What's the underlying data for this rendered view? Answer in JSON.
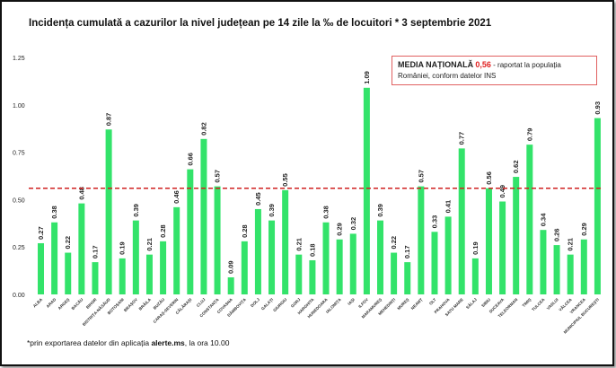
{
  "title": "Incidența cumulată a cazurilor la nivel județean pe 14 zile la ‰ de locuitori * 3 septembrie 2021",
  "legend": {
    "label": "MEDIA NAȚIONALĂ",
    "value": "0,56",
    "text": "- raportat la populația României, conform datelor INS"
  },
  "note": {
    "prefix": "*prin exportarea  datelor din aplicația ",
    "bold": "alerte.ms",
    "suffix": ", la ora 10.00"
  },
  "chart_data": {
    "type": "bar",
    "title": "Incidența cumulată a cazurilor la nivel județean pe 14 zile la ‰ de locuitori * 3 septembrie 2021",
    "categories": [
      "ALBA",
      "ARAD",
      "ARGEȘ",
      "BACĂU",
      "BIHOR",
      "BISTRIȚA-NĂSĂUD",
      "BOTOȘANI",
      "BRAȘOV",
      "BRĂILA",
      "BUZĂU",
      "CARAȘ-SEVERIN",
      "CĂLĂRAȘI",
      "CLUJ",
      "CONSTANȚA",
      "COVASNA",
      "DÂMBOVIȚA",
      "DOLJ",
      "GALAȚI",
      "GIURGIU",
      "GORJ",
      "HARGHITA",
      "HUNEDOARA",
      "IALOMIȚA",
      "IAȘI",
      "ILFOV",
      "MARAMUREȘ",
      "MEHEDINȚI",
      "MUREȘ",
      "NEAMȚ",
      "OLT",
      "PRAHOVA",
      "SATU MARE",
      "SĂLAJ",
      "SIBIU",
      "SUCEAVA",
      "TELEORMAN",
      "TIMIȘ",
      "TULCEA",
      "VASLUI",
      "VÂLCEA",
      "VRANCEA",
      "MUNICIPIUL BUCUREȘTI"
    ],
    "values": [
      0.27,
      0.38,
      0.22,
      0.48,
      0.17,
      0.87,
      0.19,
      0.39,
      0.21,
      0.28,
      0.46,
      0.66,
      0.82,
      0.57,
      0.09,
      0.28,
      0.45,
      0.39,
      0.55,
      0.21,
      0.18,
      0.38,
      0.29,
      0.32,
      1.09,
      0.39,
      0.22,
      0.17,
      0.57,
      0.33,
      0.41,
      0.77,
      0.19,
      0.56,
      0.49,
      0.62,
      0.79,
      0.34,
      0.26,
      0.21,
      0.29,
      0.93
    ],
    "yticks": [
      "0.00",
      "0.25",
      "0.50",
      "0.75",
      "1.00",
      "1.25"
    ],
    "ylim": [
      0,
      1.25
    ],
    "reference_line": 0.56,
    "grid": false,
    "bar_color": "#33e36a",
    "reference_color": "#d02020"
  }
}
